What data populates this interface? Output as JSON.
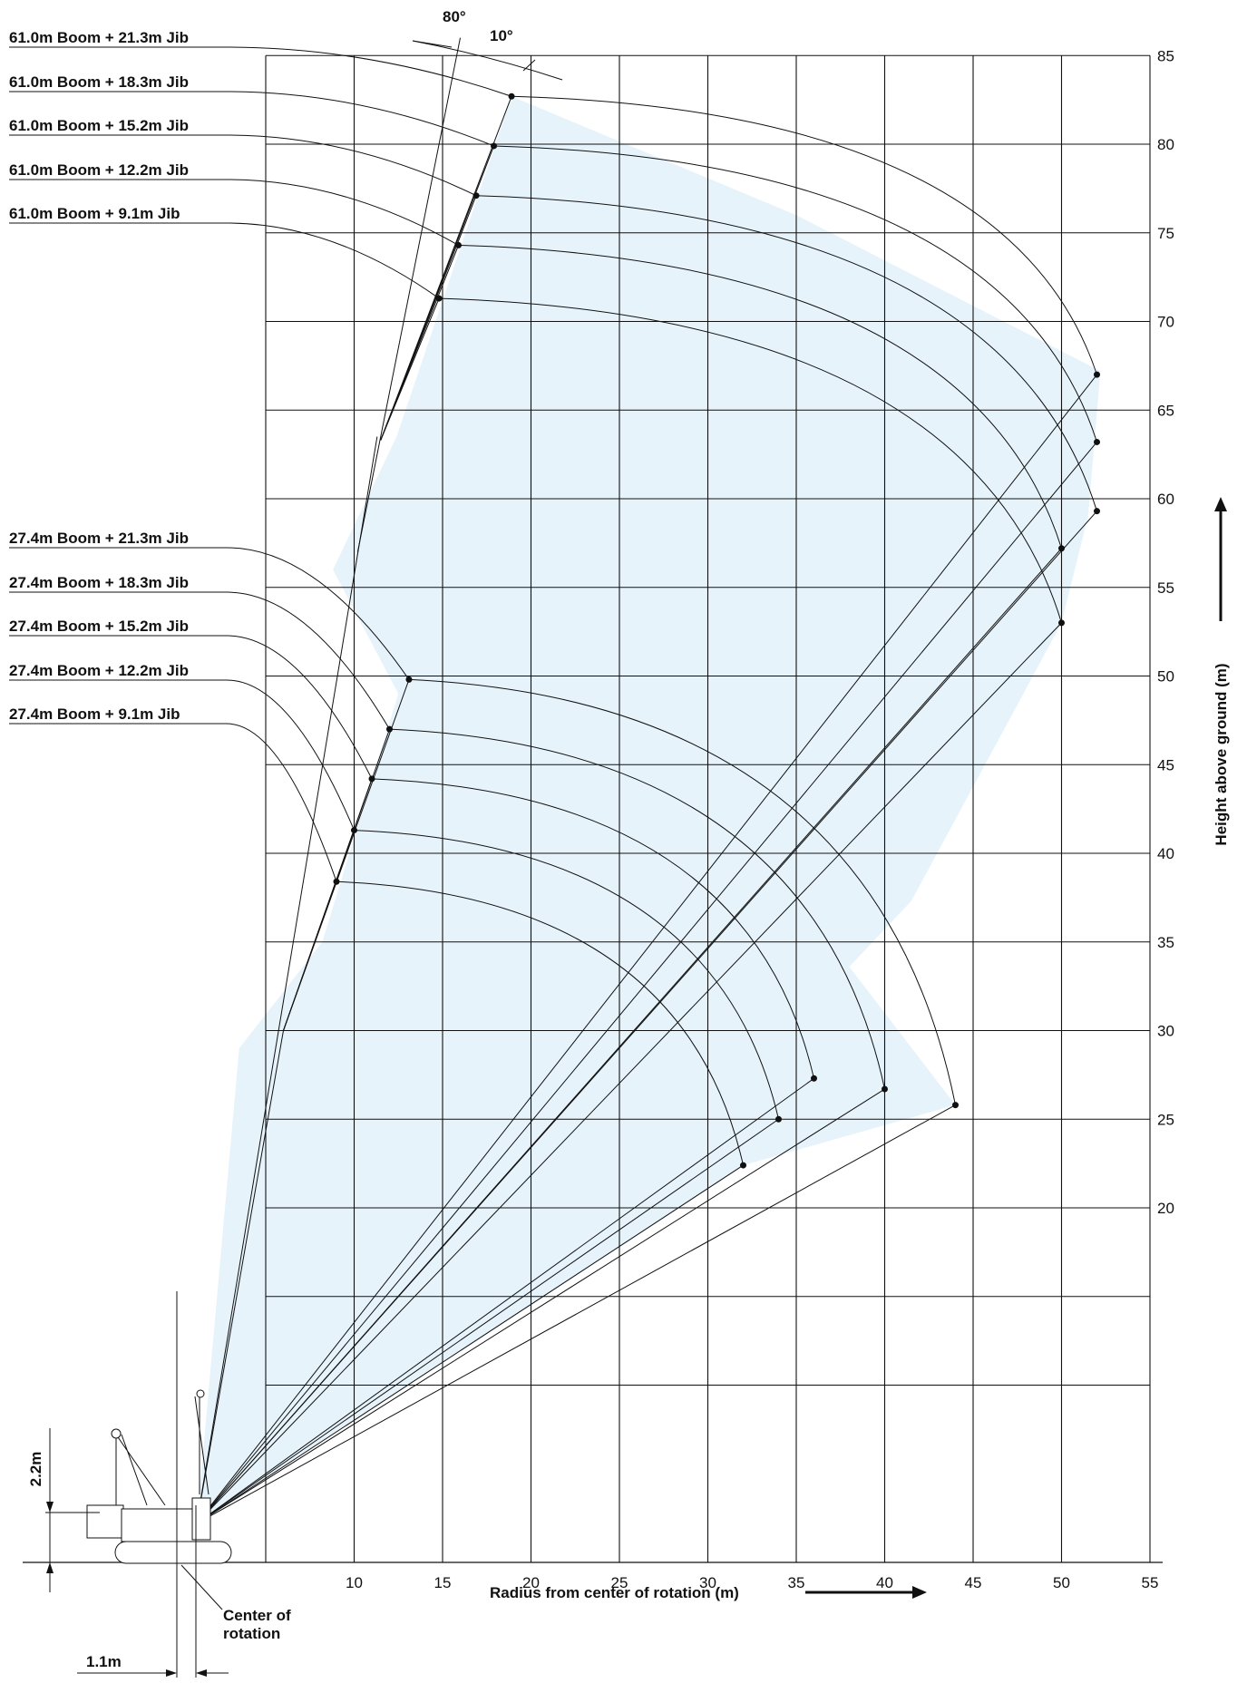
{
  "chart_data": {
    "type": "line",
    "x_ticks": [
      "10",
      "15",
      "20",
      "25",
      "30",
      "35",
      "40",
      "45",
      "50",
      "55"
    ],
    "y_ticks": [
      "20",
      "25",
      "30",
      "35",
      "40",
      "45",
      "50",
      "55",
      "60",
      "65",
      "70",
      "75",
      "80",
      "85"
    ],
    "xlabel": "Radius from center of rotation (m)",
    "ylabel": "Height above ground (m)",
    "xlim": [
      0,
      55
    ],
    "ylim": [
      0,
      85
    ],
    "fill_color": "#e6f3fb",
    "angle_labels": [
      "80°",
      "10°"
    ],
    "callouts": {
      "boom_height": "2.2m",
      "rotation_offset": "1.1m",
      "center_of_rotation": [
        "Center of",
        "rotation"
      ]
    },
    "series": [
      {
        "name": "61.0m Boom + 21.3m Jib",
        "tip_top": [
          18.9,
          82.7
        ],
        "tip_out": [
          52.0,
          67.0
        ]
      },
      {
        "name": "61.0m Boom + 18.3m Jib",
        "tip_top": [
          17.9,
          79.9
        ],
        "tip_out": [
          52.0,
          63.2
        ]
      },
      {
        "name": "61.0m Boom + 15.2m Jib",
        "tip_top": [
          16.9,
          77.1
        ],
        "tip_out": [
          52.0,
          59.3
        ]
      },
      {
        "name": "61.0m Boom + 12.2m Jib",
        "tip_top": [
          15.9,
          74.3
        ],
        "tip_out": [
          50.0,
          57.2
        ]
      },
      {
        "name": "61.0m Boom + 9.1m Jib",
        "tip_top": [
          14.8,
          71.3
        ],
        "tip_out": [
          50.0,
          53.0
        ]
      },
      {
        "name": "27.4m Boom + 21.3m Jib",
        "tip_top": [
          13.1,
          49.8
        ],
        "tip_out": [
          44.0,
          25.8
        ]
      },
      {
        "name": "27.4m Boom + 18.3m Jib",
        "tip_top": [
          12.0,
          47.0
        ],
        "tip_out": [
          40.0,
          26.7
        ]
      },
      {
        "name": "27.4m Boom + 15.2m Jib",
        "tip_top": [
          11.0,
          44.2
        ],
        "tip_out": [
          36.0,
          27.3
        ]
      },
      {
        "name": "27.4m Boom + 12.2m Jib",
        "tip_top": [
          10.0,
          41.3
        ],
        "tip_out": [
          34.0,
          25.0
        ]
      },
      {
        "name": "27.4m Boom + 9.1m Jib",
        "tip_top": [
          9.0,
          38.4
        ],
        "tip_out": [
          32.0,
          22.4
        ]
      }
    ]
  }
}
